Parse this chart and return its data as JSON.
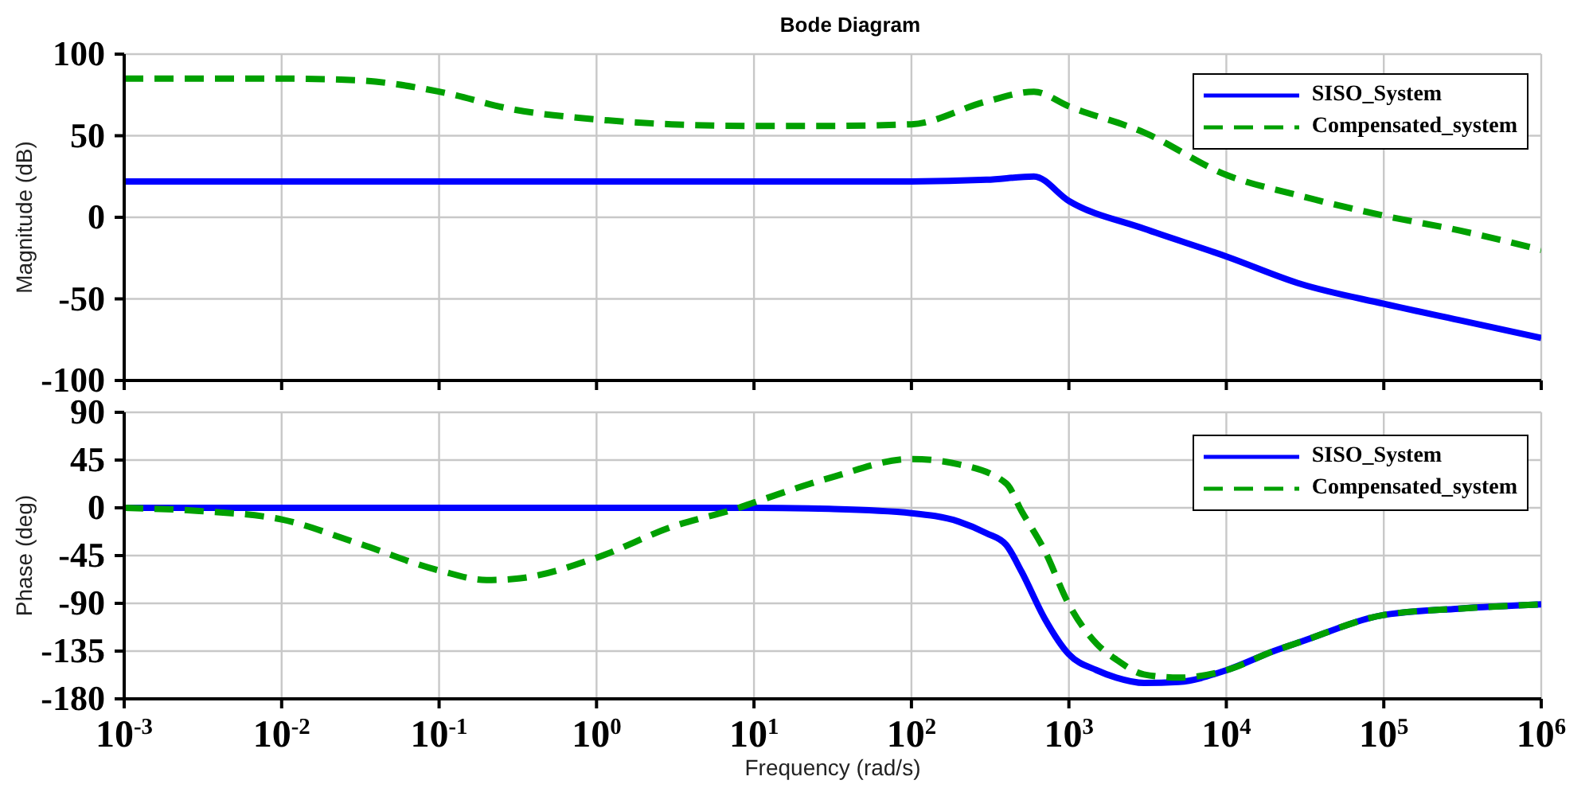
{
  "chart_data": [
    {
      "type": "line",
      "title": "Bode Diagram",
      "ylabel": "Magnitude (dB)",
      "log": "x",
      "grid": true,
      "legend": "top right",
      "tick_labels": "y",
      "xlim": [
        0.001,
        1000000
      ],
      "xticks": [
        {
          "value": 0.001,
          "label": null
        },
        {
          "value": 0.01,
          "label": null
        },
        {
          "value": 0.1,
          "label": null
        },
        {
          "value": 1,
          "label": null
        },
        {
          "value": 10,
          "label": null
        },
        {
          "value": 100,
          "label": null
        },
        {
          "value": 1000,
          "label": null
        },
        {
          "value": 10000,
          "label": null
        },
        {
          "value": 100000,
          "label": null
        },
        {
          "value": 1000000,
          "label": null
        }
      ],
      "ylim": [
        -100,
        100
      ],
      "yticks": [
        -100,
        -50,
        0,
        50,
        100
      ],
      "series": [
        {
          "name": "SISO_System",
          "color": "#0000ff",
          "line_style": "solid",
          "x": [
            0.001,
            0.01,
            0.1,
            1,
            10,
            100,
            300,
            600,
            1000,
            3000,
            10000,
            30000,
            100000,
            300000,
            1000000
          ],
          "values": [
            22,
            22,
            22,
            22,
            22,
            22,
            23,
            25,
            10,
            -7,
            -24,
            -41,
            -53,
            -63,
            -74
          ]
        },
        {
          "name": "Compensated_system",
          "color": "#00a000",
          "line_style": "dashed",
          "x": [
            0.001,
            0.01,
            0.03,
            0.1,
            0.3,
            1,
            3,
            10,
            30,
            100,
            300,
            600,
            1000,
            3000,
            10000,
            30000,
            100000,
            300000,
            1000000
          ],
          "values": [
            85,
            85,
            84,
            77,
            66,
            60,
            57,
            56,
            56,
            57,
            71,
            77,
            68,
            52,
            26,
            13,
            1,
            -8,
            -20
          ]
        }
      ]
    },
    {
      "type": "line",
      "xlabel": "Frequency  (rad/s)",
      "ylabel": "Phase (deg)",
      "log": "x",
      "grid": true,
      "legend": "top right",
      "xlim": [
        0.001,
        1000000
      ],
      "xticks": [
        {
          "value": 0.001,
          "label": "10$^{-3}$"
        },
        {
          "value": 0.01,
          "label": "10$^{-2}$"
        },
        {
          "value": 0.1,
          "label": "10$^{-1}$"
        },
        {
          "value": 1,
          "label": "10$^{0}$"
        },
        {
          "value": 10,
          "label": "10$^{1}$"
        },
        {
          "value": 100,
          "label": "10$^{2}$"
        },
        {
          "value": 1000,
          "label": "10$^{3}$"
        },
        {
          "value": 10000,
          "label": "10$^{4}$"
        },
        {
          "value": 100000,
          "label": "10$^{5}$"
        },
        {
          "value": 1000000,
          "label": "10$^{6}$"
        }
      ],
      "ylim": [
        -180,
        90
      ],
      "yticks": [
        -180,
        -135,
        -90,
        -45,
        0,
        45,
        90
      ],
      "series": [
        {
          "name": "SISO_System",
          "color": "#0000ff",
          "line_style": "solid",
          "x": [
            0.001,
            0.01,
            0.1,
            1,
            10,
            30,
            100,
            200,
            300,
            400,
            500,
            700,
            1000,
            1500,
            2000,
            3000,
            5000,
            10000,
            20000,
            30000,
            100000,
            300000,
            1000000
          ],
          "values": [
            0,
            0,
            0,
            0,
            0,
            -1,
            -5,
            -13,
            -24,
            -35,
            -60,
            -104,
            -138,
            -153,
            -160,
            -165,
            -164,
            -153,
            -135,
            -126,
            -101,
            -95,
            -91
          ]
        },
        {
          "name": "Compensated_system",
          "color": "#00a000",
          "line_style": "dashed",
          "x": [
            0.001,
            0.003,
            0.01,
            0.03,
            0.1,
            0.2,
            0.3,
            1,
            3,
            8,
            10,
            30,
            100,
            200,
            400,
            500,
            700,
            1000,
            1500,
            2000,
            3000,
            5000,
            10000,
            20000,
            30000,
            100000,
            300000,
            1000000
          ],
          "values": [
            0,
            -3,
            -11,
            -33,
            -59,
            -68,
            -67,
            -47,
            -18,
            0,
            5,
            28,
            46,
            41,
            23,
            -3,
            -40,
            -91,
            -128,
            -143,
            -157,
            -160,
            -153,
            -135,
            -126,
            -101,
            -95,
            -91
          ]
        }
      ]
    }
  ]
}
